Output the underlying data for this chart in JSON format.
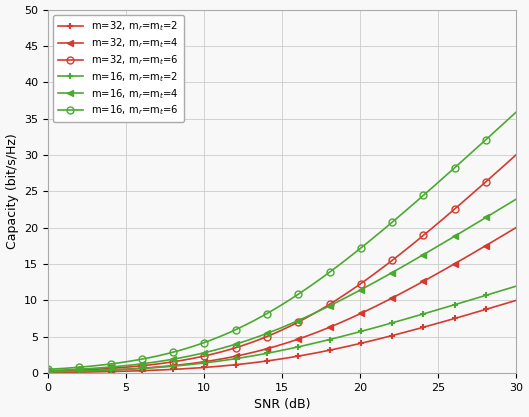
{
  "title": "",
  "xlabel": "SNR (dB)",
  "ylabel": "Capacity (bit/s/Hz)",
  "xlim": [
    0,
    30
  ],
  "ylim": [
    0,
    50
  ],
  "xticks": [
    0,
    5,
    10,
    15,
    20,
    25,
    30
  ],
  "yticks": [
    0,
    5,
    10,
    15,
    20,
    25,
    30,
    35,
    40,
    45,
    50
  ],
  "series": [
    {
      "m": 32,
      "mr": 2,
      "mt": 2,
      "color": "#d43a2f",
      "marker": "+",
      "label": "m=32, m_r=m_t=2"
    },
    {
      "m": 32,
      "mr": 4,
      "mt": 4,
      "color": "#d43a2f",
      "marker": "<",
      "label": "m=32, m_r=m_t=4"
    },
    {
      "m": 32,
      "mr": 6,
      "mt": 6,
      "color": "#d43a2f",
      "marker": "o",
      "label": "m=32, m_r=m_t=6"
    },
    {
      "m": 16,
      "mr": 2,
      "mt": 2,
      "color": "#4aaa30",
      "marker": "+",
      "label": "m=16, m_r=m_t=2"
    },
    {
      "m": 16,
      "mr": 4,
      "mt": 4,
      "color": "#4aaa30",
      "marker": "<",
      "label": "m=16, m_r=m_t=4"
    },
    {
      "m": 16,
      "mr": 6,
      "mt": 6,
      "color": "#4aaa30",
      "marker": "o",
      "label": "m=16, m_r=m_t=6"
    }
  ],
  "snr_dB_range": [
    0,
    30
  ],
  "markersize_plus": 5,
  "markersize_tri": 5,
  "markersize_circ": 5,
  "linewidth": 1.2,
  "grid_color": "#cccccc",
  "background_color": "#f8f8f8"
}
